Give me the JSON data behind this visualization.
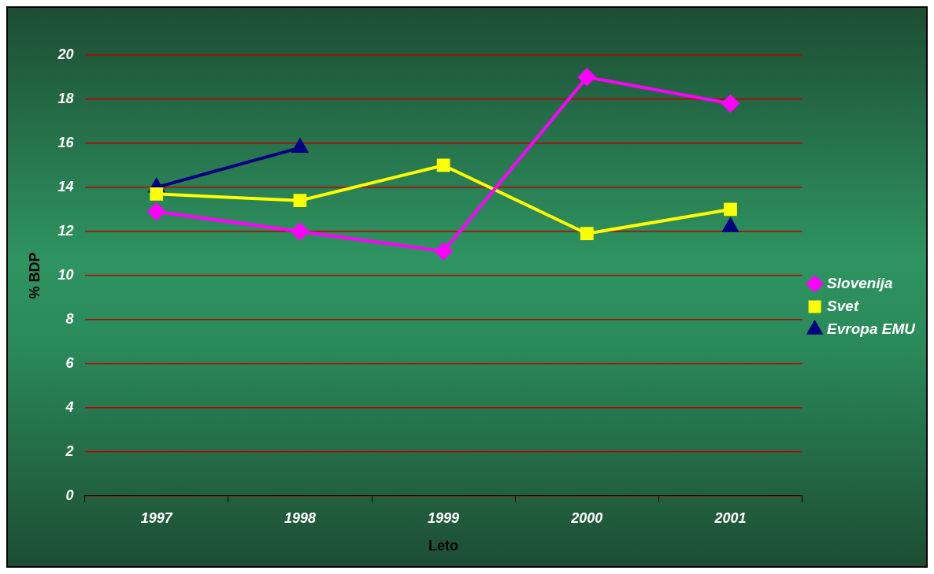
{
  "chart_data": {
    "type": "line",
    "xlabel": "Leto",
    "ylabel": "% BDP",
    "categories": [
      "1997",
      "1998",
      "1999",
      "2000",
      "2001"
    ],
    "series": [
      {
        "name": "Slovenija",
        "color": "#ff00ff",
        "marker": "diamond",
        "values": [
          12.9,
          12.0,
          11.1,
          19.0,
          17.8
        ]
      },
      {
        "name": "Svet",
        "color": "#ffff00",
        "marker": "square",
        "values": [
          13.7,
          13.4,
          15.0,
          11.9,
          13.0
        ]
      },
      {
        "name": "Evropa EMU",
        "color": "#000080",
        "marker": "triangle",
        "values": [
          14.0,
          15.8,
          null,
          null,
          12.2
        ]
      }
    ],
    "ylim": [
      0,
      20
    ],
    "yticks": [
      0,
      2,
      4,
      6,
      8,
      10,
      12,
      14,
      16,
      18,
      20
    ],
    "grid": "y",
    "legend": "right",
    "line_style": "solid"
  }
}
